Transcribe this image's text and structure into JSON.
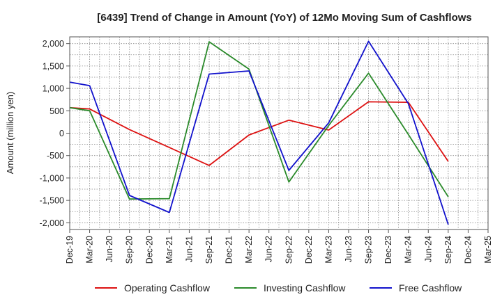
{
  "chart_data": {
    "type": "line",
    "title": "[6439]  Trend of Change in Amount (YoY) of 12Mo Moving Sum of Cashflows",
    "xlabel": "",
    "ylabel": "Amount (million yen)",
    "ylim": [
      -2150,
      2150
    ],
    "yticks": [
      2000,
      1500,
      1000,
      500,
      0,
      -500,
      -1000,
      -1500,
      -2000
    ],
    "ytick_labels": [
      "2,000",
      "1,500",
      "1,000",
      "500",
      "0",
      "-500",
      "-1,000",
      "-1,500",
      "-2,000"
    ],
    "categories": [
      "Dec-19",
      "Mar-20",
      "Jun-20",
      "Sep-20",
      "Dec-20",
      "Mar-21",
      "Jun-21",
      "Sep-21",
      "Dec-21",
      "Mar-22",
      "Jun-22",
      "Sep-22",
      "Dec-22",
      "Mar-23",
      "Jun-23",
      "Sep-23",
      "Dec-23",
      "Mar-24",
      "Jun-24",
      "Sep-24",
      "Dec-24",
      "Mar-25"
    ],
    "grid": true,
    "legend_position": "bottom",
    "series": [
      {
        "name": "Operating Cashflow",
        "color": "#dd1111",
        "values": [
          570,
          540,
          null,
          80,
          null,
          -320,
          null,
          -720,
          null,
          -40,
          null,
          290,
          null,
          70,
          null,
          700,
          null,
          690,
          null,
          -630,
          null,
          null
        ]
      },
      {
        "name": "Investing Cashflow",
        "color": "#2a8a2a",
        "values": [
          570,
          500,
          null,
          -1470,
          null,
          -1460,
          null,
          2040,
          null,
          1430,
          null,
          -1090,
          null,
          170,
          null,
          1340,
          null,
          -30,
          null,
          -1420,
          null,
          null
        ]
      },
      {
        "name": "Free Cashflow",
        "color": "#1111cc",
        "values": [
          1140,
          1060,
          null,
          -1390,
          null,
          -1770,
          null,
          1320,
          null,
          1390,
          null,
          -830,
          null,
          230,
          null,
          2050,
          null,
          660,
          null,
          -2040,
          null,
          null
        ]
      }
    ]
  }
}
